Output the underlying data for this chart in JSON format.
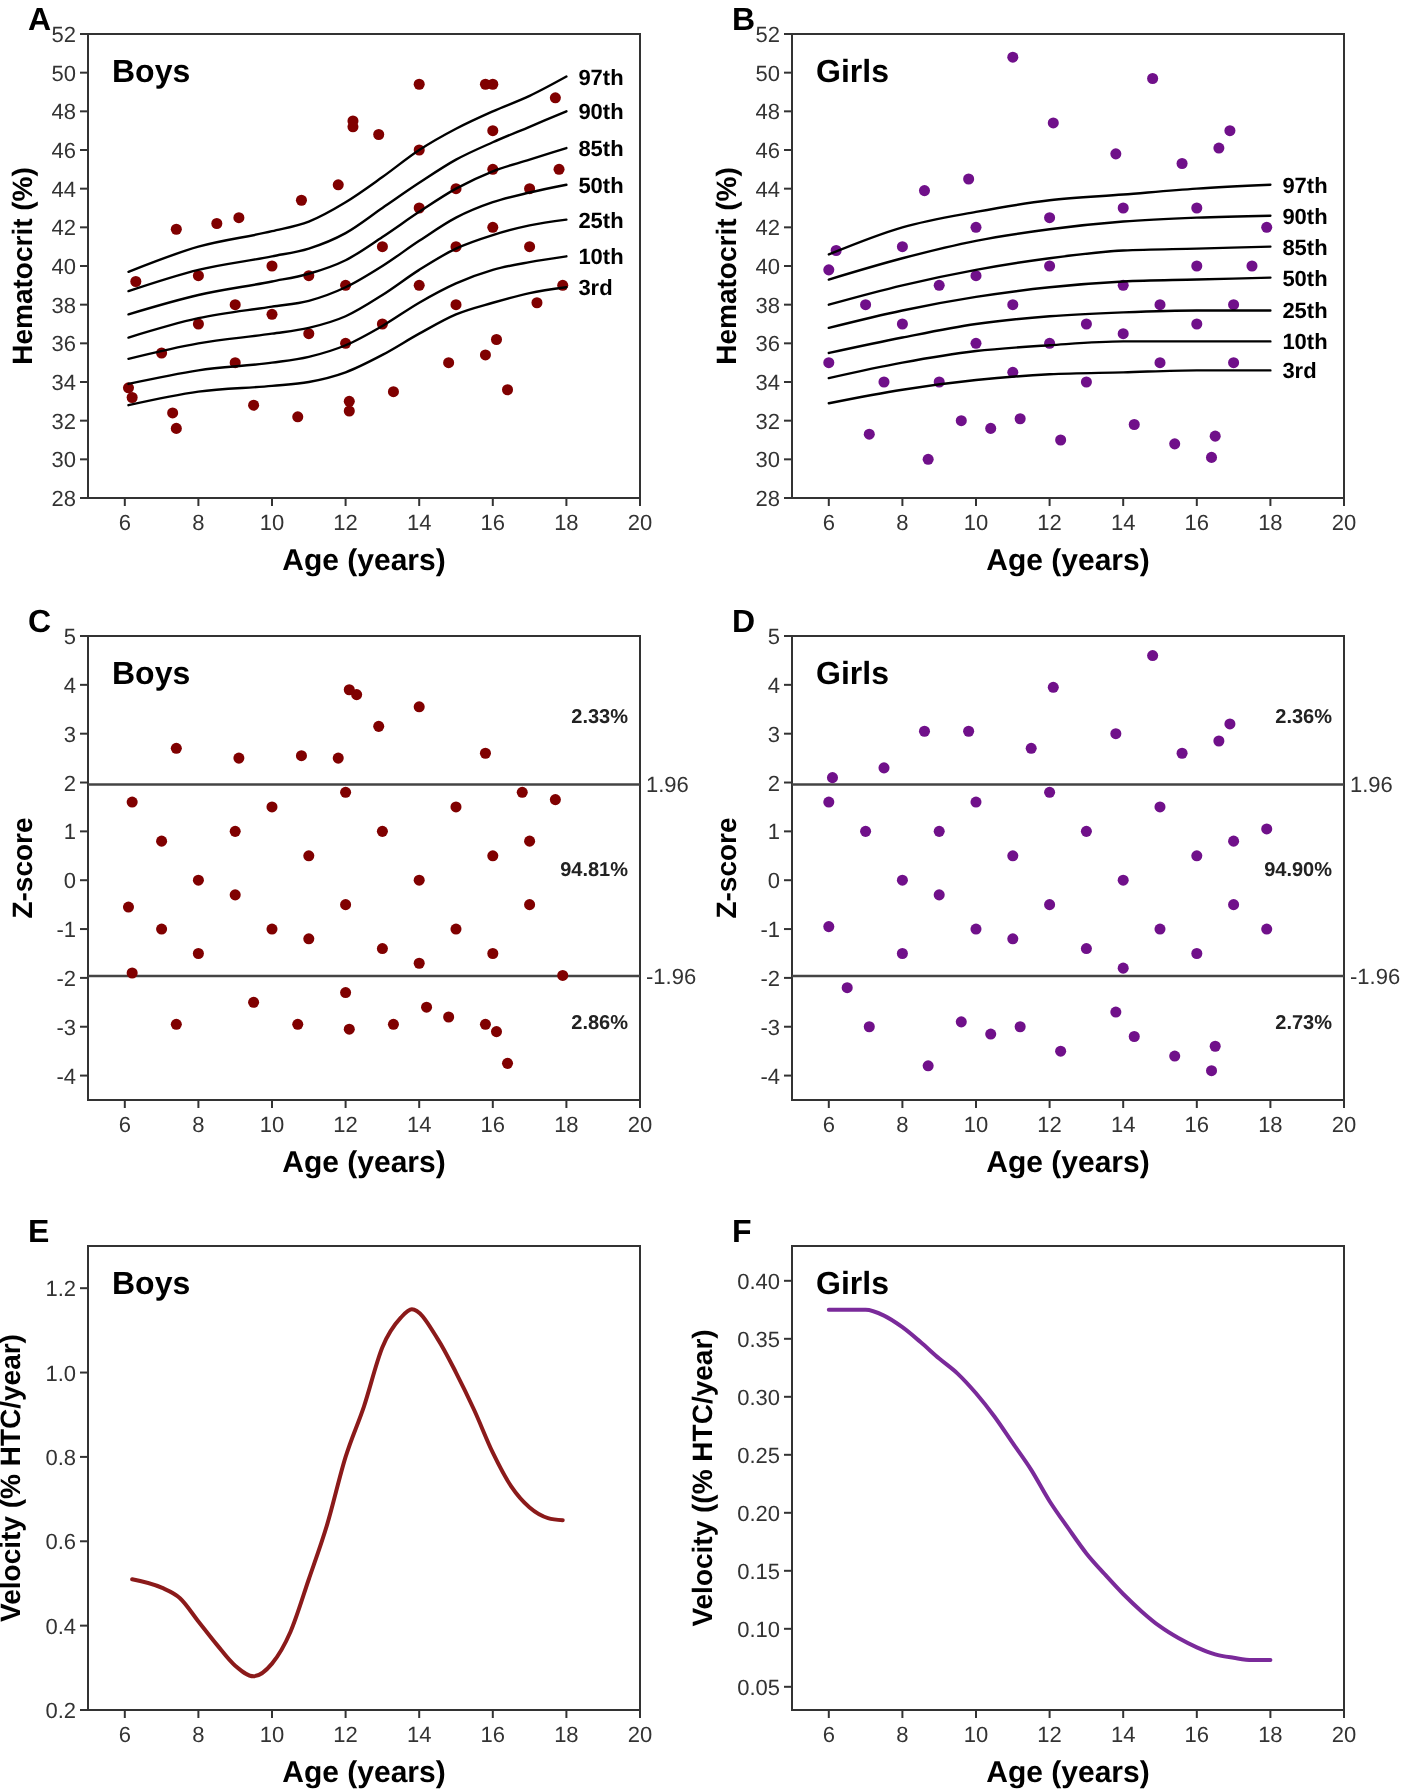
{
  "chart_data": [
    {
      "type": "scatter",
      "title": "A",
      "subtitle": "Boys",
      "xlabel": "Age (years)",
      "ylabel": "Hematocrit (%)",
      "xlim": [
        5,
        20
      ],
      "xticks": [
        6,
        8,
        10,
        12,
        14,
        16,
        18,
        20
      ],
      "ylim": [
        28,
        52
      ],
      "yticks": [
        28,
        30,
        32,
        34,
        36,
        38,
        40,
        42,
        44,
        46,
        48,
        50,
        52
      ],
      "marker": "circle",
      "series": [
        {
          "color": "#800000",
          "x": [
            7.4,
            7.3,
            10.7,
            12.1,
            12.1,
            12.2,
            12.2,
            14.0,
            15.8,
            16.0,
            17.7,
            16.4,
            16.1,
            6.1,
            6.2,
            9.5,
            13.3,
            9.1,
            8.5,
            7.4,
            10.8,
            12.9,
            11.8,
            17.2,
            17.9,
            15.8,
            14.8,
            6.3,
            8,
            9,
            10,
            11,
            10,
            9,
            12,
            13,
            13,
            14,
            14,
            15,
            15,
            16,
            16,
            17,
            17,
            16,
            17.8,
            8,
            7,
            11,
            12,
            14,
            15
          ],
          "values": [
            31.6,
            32.4,
            32.2,
            32.5,
            33.0,
            47.5,
            47.2,
            49.4,
            49.4,
            49.4,
            48.7,
            33.6,
            36.2,
            33.7,
            33.2,
            32.8,
            33.5,
            42.5,
            42.2,
            41.9,
            43.4,
            46.8,
            44.2,
            38.1,
            39.0,
            35.4,
            35.0,
            39.2,
            37,
            38,
            37.5,
            36.5,
            40,
            35,
            39,
            41,
            37,
            43,
            39,
            44,
            41,
            45,
            42,
            44,
            41,
            47,
            45,
            39.5,
            35.5,
            39.5,
            36,
            46,
            38
          ]
        },
        {
          "name": "97th",
          "type": "line",
          "marker": "none",
          "color": "#000000",
          "x": [
            6.1,
            8,
            10,
            11,
            12,
            13,
            14,
            15,
            16,
            17,
            18
          ],
          "values": [
            39.7,
            41.0,
            41.8,
            42.3,
            43.3,
            44.6,
            46.0,
            47.1,
            48.0,
            48.8,
            49.8
          ]
        },
        {
          "name": "90th",
          "type": "line",
          "marker": "none",
          "color": "#000000",
          "x": [
            6.1,
            8,
            10,
            11,
            12,
            13,
            14,
            15,
            16,
            17,
            18
          ],
          "values": [
            38.7,
            39.8,
            40.5,
            40.9,
            41.7,
            43.0,
            44.3,
            45.5,
            46.4,
            47.2,
            48.0
          ]
        },
        {
          "name": "85th",
          "type": "line",
          "marker": "none",
          "color": "#000000",
          "x": [
            6.1,
            8,
            10,
            11,
            12,
            13,
            14,
            15,
            16,
            17,
            18
          ],
          "values": [
            37.5,
            38.5,
            39.2,
            39.6,
            40.3,
            41.5,
            42.8,
            44.0,
            44.9,
            45.5,
            46.1
          ]
        },
        {
          "name": "50th",
          "type": "line",
          "marker": "none",
          "color": "#000000",
          "x": [
            6.1,
            8,
            10,
            11,
            12,
            13,
            14,
            15,
            16,
            17,
            18
          ],
          "values": [
            36.3,
            37.3,
            37.9,
            38.2,
            38.9,
            40.0,
            41.3,
            42.5,
            43.3,
            43.8,
            44.2
          ]
        },
        {
          "name": "25th",
          "type": "line",
          "marker": "none",
          "color": "#000000",
          "x": [
            6.1,
            8,
            10,
            11,
            12,
            13,
            14,
            15,
            16,
            17,
            18
          ],
          "values": [
            35.2,
            36.0,
            36.5,
            36.8,
            37.4,
            38.5,
            39.8,
            40.9,
            41.6,
            42.1,
            42.4
          ]
        },
        {
          "name": "10th",
          "type": "line",
          "marker": "none",
          "color": "#000000",
          "x": [
            6.1,
            8,
            10,
            11,
            12,
            13,
            14,
            15,
            16,
            17,
            18
          ],
          "values": [
            33.9,
            34.6,
            35.0,
            35.3,
            35.9,
            36.9,
            38.1,
            39.1,
            39.8,
            40.2,
            40.5
          ]
        },
        {
          "name": "3rd",
          "type": "line",
          "marker": "none",
          "color": "#000000",
          "x": [
            6.1,
            8,
            10,
            11,
            12,
            13,
            14,
            15,
            16,
            17,
            18
          ],
          "values": [
            32.8,
            33.5,
            33.8,
            34.0,
            34.5,
            35.4,
            36.5,
            37.5,
            38.1,
            38.6,
            38.9
          ]
        }
      ]
    },
    {
      "type": "scatter",
      "title": "B",
      "subtitle": "Girls",
      "xlabel": "Age (years)",
      "ylabel": "Hematocrit (%)",
      "xlim": [
        5,
        20
      ],
      "xticks": [
        6,
        8,
        10,
        12,
        14,
        16,
        18,
        20
      ],
      "ylim": [
        28,
        52
      ],
      "yticks": [
        28,
        30,
        32,
        34,
        36,
        38,
        40,
        42,
        44,
        46,
        48,
        50,
        52
      ],
      "marker": "circle",
      "series": [
        {
          "color": "#70108a",
          "x": [
            11.0,
            14.8,
            12.1,
            16.9,
            16.6,
            13.8,
            15.6,
            8.6,
            9.8,
            8.7,
            12.3,
            15.4,
            16.4,
            16.5,
            7.1,
            9.6,
            11.2,
            14.3,
            10.4,
            6.0,
            6.0,
            6.2,
            8,
            9,
            10,
            11,
            12,
            13,
            14,
            15,
            16,
            17,
            7,
            8,
            10,
            12,
            14,
            16,
            17.9,
            9,
            11,
            13,
            15,
            17,
            10,
            12,
            14,
            16,
            17.5,
            7.5
          ],
          "values": [
            50.8,
            49.7,
            47.4,
            47.0,
            46.1,
            45.8,
            45.3,
            43.9,
            44.5,
            30.0,
            31.0,
            30.8,
            30.1,
            31.2,
            31.3,
            32.0,
            32.1,
            31.8,
            31.6,
            35.0,
            39.8,
            40.8,
            37,
            39,
            36,
            38,
            40,
            37,
            39,
            38,
            40,
            38,
            38,
            41,
            42,
            42.5,
            43,
            43,
            42,
            34,
            34.5,
            34,
            35,
            35,
            39.5,
            36,
            36.5,
            37,
            40,
            34
          ]
        },
        {
          "name": "97th",
          "type": "line",
          "marker": "none",
          "color": "#000000",
          "x": [
            6,
            8,
            10,
            12,
            14,
            16,
            18
          ],
          "values": [
            40.6,
            42.0,
            42.8,
            43.4,
            43.7,
            44.0,
            44.2
          ]
        },
        {
          "name": "90th",
          "type": "line",
          "marker": "none",
          "color": "#000000",
          "x": [
            6,
            8,
            10,
            12,
            14,
            16,
            18
          ],
          "values": [
            39.3,
            40.4,
            41.3,
            41.9,
            42.3,
            42.5,
            42.6
          ]
        },
        {
          "name": "85th",
          "type": "line",
          "marker": "none",
          "color": "#000000",
          "x": [
            6,
            8,
            10,
            12,
            14,
            16,
            18
          ],
          "values": [
            38.0,
            39.0,
            39.8,
            40.4,
            40.8,
            40.9,
            41.0
          ]
        },
        {
          "name": "50th",
          "type": "line",
          "marker": "none",
          "color": "#000000",
          "x": [
            6,
            8,
            10,
            12,
            14,
            16,
            18
          ],
          "values": [
            36.8,
            37.7,
            38.4,
            38.9,
            39.2,
            39.3,
            39.4
          ]
        },
        {
          "name": "25th",
          "type": "line",
          "marker": "none",
          "color": "#000000",
          "x": [
            6,
            8,
            10,
            12,
            14,
            16,
            18
          ],
          "values": [
            35.5,
            36.3,
            37.0,
            37.4,
            37.6,
            37.7,
            37.7
          ]
        },
        {
          "name": "10th",
          "type": "line",
          "marker": "none",
          "color": "#000000",
          "x": [
            6,
            8,
            10,
            12,
            14,
            16,
            18
          ],
          "values": [
            34.2,
            35.0,
            35.6,
            35.9,
            36.1,
            36.1,
            36.1
          ]
        },
        {
          "name": "3rd",
          "type": "line",
          "marker": "none",
          "color": "#000000",
          "x": [
            6,
            8,
            10,
            12,
            14,
            16,
            18
          ],
          "values": [
            32.9,
            33.6,
            34.1,
            34.4,
            34.5,
            34.6,
            34.6
          ]
        }
      ]
    },
    {
      "type": "scatter",
      "title": "C",
      "subtitle": "Boys",
      "xlabel": "Age (years)",
      "ylabel": "Z-score",
      "xlim": [
        5,
        20
      ],
      "xticks": [
        6,
        8,
        10,
        12,
        14,
        16,
        18,
        20
      ],
      "ylim": [
        -4.5,
        5
      ],
      "yticks": [
        -4,
        -3,
        -2,
        -1,
        0,
        1,
        2,
        3,
        4,
        5
      ],
      "marker": "circle",
      "ref_lines": [
        {
          "axis": "y",
          "value": 1.96,
          "label": "1.96",
          "color": "#444444"
        },
        {
          "axis": "y",
          "value": -1.96,
          "label": "-1.96",
          "color": "#444444"
        }
      ],
      "annotations": [
        "2.33%",
        "94.81%",
        "2.86%"
      ],
      "series": [
        {
          "color": "#800000",
          "x": [
            12.1,
            12.3,
            14.0,
            12.9,
            16.4,
            7.4,
            10.7,
            12.1,
            13.3,
            15.8,
            16.1,
            14.8,
            7.4,
            15.8,
            9.1,
            10.8,
            11.8,
            6.2,
            6.1,
            6.2,
            17.9,
            17.7,
            8,
            9,
            10,
            11,
            12,
            13,
            14,
            15,
            16,
            17,
            8,
            10,
            12,
            14,
            16,
            9,
            11,
            13,
            15,
            17,
            7,
            7,
            12,
            9.5,
            14.2,
            16.8
          ],
          "values": [
            3.9,
            3.8,
            3.55,
            3.15,
            -3.75,
            -2.95,
            -2.95,
            -3.05,
            -2.95,
            -2.95,
            -3.1,
            -2.8,
            2.7,
            2.6,
            2.5,
            2.55,
            2.5,
            1.6,
            -0.55,
            -1.9,
            -1.95,
            1.65,
            0,
            1,
            -1,
            0.5,
            -0.5,
            1,
            0,
            -1,
            0.5,
            -0.5,
            -1.5,
            1.5,
            1.8,
            -1.7,
            -1.5,
            -0.3,
            -1.2,
            -1.4,
            1.5,
            0.8,
            0.8,
            -1,
            -2.3,
            -2.5,
            -2.6,
            1.8
          ]
        }
      ]
    },
    {
      "type": "scatter",
      "title": "D",
      "subtitle": "Girls",
      "xlabel": "Age (years)",
      "ylabel": "Z-score",
      "xlim": [
        5,
        20
      ],
      "xticks": [
        6,
        8,
        10,
        12,
        14,
        16,
        18,
        20
      ],
      "ylim": [
        -4.5,
        5
      ],
      "yticks": [
        -4,
        -3,
        -2,
        -1,
        0,
        1,
        2,
        3,
        4,
        5
      ],
      "marker": "circle",
      "ref_lines": [
        {
          "axis": "y",
          "value": 1.96,
          "label": "1.96",
          "color": "#444444"
        },
        {
          "axis": "y",
          "value": -1.96,
          "label": "-1.96",
          "color": "#444444"
        }
      ],
      "annotations": [
        "2.36%",
        "94.90%",
        "2.73%"
      ],
      "series": [
        {
          "color": "#70108a",
          "x": [
            14.8,
            12.1,
            16.9,
            8.6,
            9.8,
            13.8,
            16.6,
            8.7,
            16.4,
            12.3,
            15.4,
            16.5,
            7.1,
            9.6,
            11.2,
            14.3,
            10.4,
            6.0,
            6.0,
            6.1,
            17.9,
            17.9,
            8,
            9,
            10,
            11,
            12,
            13,
            14,
            15,
            16,
            17,
            7,
            8,
            10,
            12,
            14,
            16,
            9,
            11,
            13,
            15,
            17,
            6.5,
            13.8,
            15.6,
            7.5,
            11.5
          ],
          "values": [
            4.6,
            3.95,
            3.2,
            3.05,
            3.05,
            3.0,
            2.85,
            -3.8,
            -3.9,
            -3.5,
            -3.6,
            -3.4,
            -3.0,
            -2.9,
            -3.0,
            -3.2,
            -3.15,
            -0.95,
            1.6,
            2.1,
            1.05,
            -1.0,
            0,
            1,
            -1,
            0.5,
            -0.5,
            1,
            0,
            -1,
            0.5,
            -0.5,
            1,
            -1.5,
            1.6,
            1.8,
            -1.8,
            -1.5,
            -0.3,
            -1.2,
            -1.4,
            1.5,
            0.8,
            -2.2,
            -2.7,
            2.6,
            2.3,
            2.7
          ]
        }
      ]
    },
    {
      "type": "line",
      "title": "E",
      "subtitle": "Boys",
      "xlabel": "Age (years)",
      "ylabel": "Velocity (% HTC/year)",
      "xlim": [
        5,
        20
      ],
      "xticks": [
        6,
        8,
        10,
        12,
        14,
        16,
        18,
        20
      ],
      "ylim": [
        0.2,
        1.3
      ],
      "yticks": [
        0.2,
        0.4,
        0.6,
        0.8,
        {
          "value": 1,
          "label": "1.0"
        },
        1.2
      ],
      "series": [
        {
          "color": "#8b1a1a",
          "x": [
            6.2,
            7,
            7.5,
            8,
            8.5,
            9,
            9.5,
            10,
            10.5,
            11,
            11.5,
            12,
            12.5,
            13,
            13.5,
            13.8,
            14.5,
            15,
            15.5,
            16,
            16.5,
            17,
            17.5,
            17.9
          ],
          "values": [
            0.51,
            0.49,
            0.465,
            0.41,
            0.355,
            0.305,
            0.28,
            0.31,
            0.385,
            0.51,
            0.64,
            0.8,
            0.92,
            1.06,
            1.13,
            1.15,
            1.08,
            1.0,
            0.91,
            0.81,
            0.73,
            0.68,
            0.655,
            0.65
          ]
        }
      ]
    },
    {
      "type": "line",
      "title": "F",
      "subtitle": "Girls",
      "xlabel": "Age (years)",
      "ylabel": "Velocity ((% HTC/year)",
      "xlim": [
        5,
        20
      ],
      "xticks": [
        6,
        8,
        10,
        12,
        14,
        16,
        18,
        20
      ],
      "ylim": [
        0.03,
        0.43
      ],
      "yticks": [
        0.05,
        {
          "value": 0.1,
          "label": "0.10"
        },
        0.15,
        {
          "value": 0.2,
          "label": "0.20"
        },
        0.25,
        {
          "value": 0.3,
          "label": "0.30"
        },
        0.35,
        {
          "value": 0.4,
          "label": "0.40"
        }
      ],
      "series": [
        {
          "color": "#7a2a9a",
          "x": [
            6,
            7,
            7.5,
            8,
            8.5,
            9,
            9.5,
            10,
            10.5,
            11,
            11.5,
            12,
            12.5,
            13,
            13.5,
            14,
            14.5,
            15,
            15.5,
            16,
            16.5,
            17,
            17.5,
            18
          ],
          "values": [
            0.375,
            0.375,
            0.37,
            0.36,
            0.347,
            0.333,
            0.32,
            0.303,
            0.283,
            0.26,
            0.237,
            0.21,
            0.187,
            0.165,
            0.147,
            0.13,
            0.115,
            0.102,
            0.092,
            0.084,
            0.078,
            0.075,
            0.073,
            0.073
          ]
        }
      ]
    }
  ]
}
